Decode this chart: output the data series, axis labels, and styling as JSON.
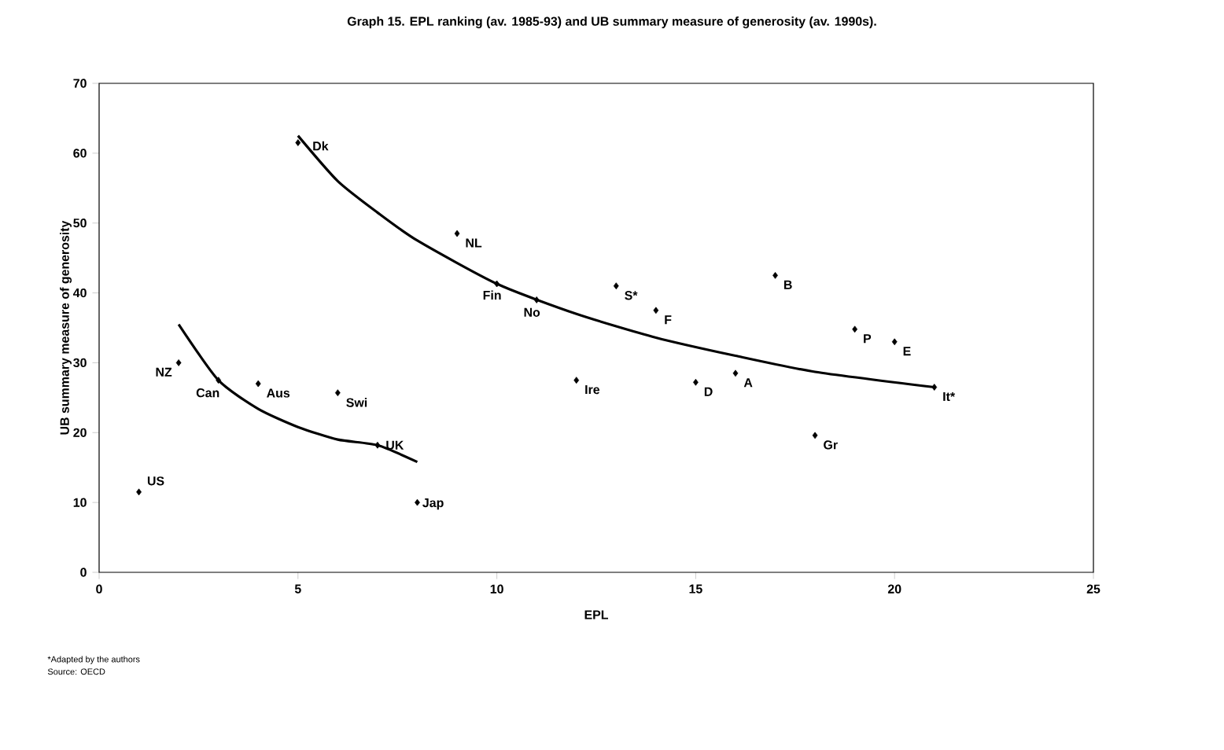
{
  "chart_data": {
    "type": "scatter",
    "title": "Graph 15.  EPL ranking (av. 1985-93) and UB summary measure of generosity (av. 1990s).",
    "xlabel": "EPL",
    "ylabel": "UB summary measure of generosity",
    "xlim": [
      0,
      25
    ],
    "xticks": [
      0,
      5,
      10,
      15,
      20,
      25
    ],
    "ylim": [
      0,
      70
    ],
    "yticks": [
      0,
      10,
      20,
      30,
      40,
      50,
      60,
      70
    ],
    "marker": "diamond",
    "series": [
      {
        "color": "#000000",
        "x": [
          1,
          2,
          3,
          4,
          5,
          6,
          7,
          8,
          9,
          10,
          11,
          12,
          13,
          14,
          15,
          16,
          17,
          18,
          19,
          20,
          21
        ],
        "values": [
          11.5,
          30,
          27.5,
          27,
          61.5,
          25.7,
          18.2,
          10,
          48.5,
          41.3,
          39,
          27.5,
          41,
          37.5,
          27.2,
          28.5,
          42.5,
          19.6,
          34.8,
          33,
          26.5
        ]
      },
      {
        "type": "line",
        "color": "#000000",
        "marker": "none",
        "line_style": "solid",
        "x": [
          5,
          6,
          7,
          8,
          10,
          12,
          14,
          16,
          18,
          21
        ],
        "values": [
          62.5,
          56,
          51.5,
          47.5,
          41.3,
          37,
          33.6,
          31,
          28.7,
          26.5
        ]
      },
      {
        "type": "line",
        "color": "#000000",
        "marker": "none",
        "line_style": "solid",
        "x": [
          2,
          3,
          4,
          5,
          6,
          7,
          8
        ],
        "values": [
          35.5,
          27.5,
          23.4,
          20.8,
          19,
          18.2,
          15.8
        ]
      }
    ],
    "annotations": [
      {
        "text": "US",
        "x": 1,
        "y": 11.5
      },
      {
        "text": "NZ",
        "x": 2,
        "y": 30
      },
      {
        "text": "Can",
        "x": 3,
        "y": 27.5
      },
      {
        "text": "Aus",
        "x": 4,
        "y": 27
      },
      {
        "text": "Dk",
        "x": 5,
        "y": 61.5
      },
      {
        "text": "Swi",
        "x": 6,
        "y": 25.7
      },
      {
        "text": "UK",
        "x": 7,
        "y": 18.2
      },
      {
        "text": "Jap",
        "x": 8,
        "y": 10
      },
      {
        "text": "NL",
        "x": 9,
        "y": 48.5
      },
      {
        "text": "Fin",
        "x": 10,
        "y": 41.3
      },
      {
        "text": "No",
        "x": 11,
        "y": 39
      },
      {
        "text": "Ire",
        "x": 12,
        "y": 27.5
      },
      {
        "text": "S*",
        "x": 13,
        "y": 41
      },
      {
        "text": "F",
        "x": 14,
        "y": 37.5
      },
      {
        "text": "D",
        "x": 15,
        "y": 27.2
      },
      {
        "text": "A",
        "x": 16,
        "y": 28.5
      },
      {
        "text": "B",
        "x": 17,
        "y": 42.5
      },
      {
        "text": "Gr",
        "x": 18,
        "y": 19.6
      },
      {
        "text": "P",
        "x": 19,
        "y": 34.8
      },
      {
        "text": "E",
        "x": 20,
        "y": 33
      },
      {
        "text": "It*",
        "x": 21,
        "y": 26.5
      },
      "*Adapted by the authors",
      "Source: OECD"
    ]
  }
}
